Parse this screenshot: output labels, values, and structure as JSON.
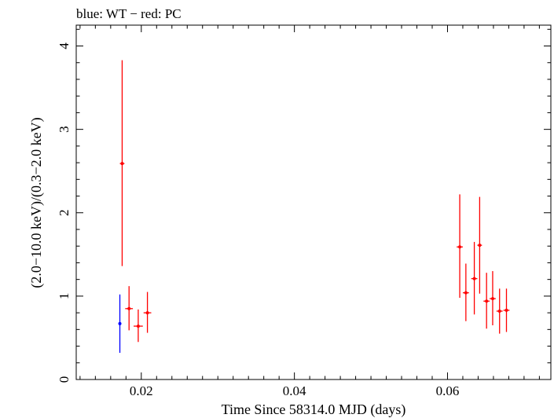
{
  "chart_data": {
    "type": "scatter",
    "title": "blue: WT − red: PC",
    "xlabel": "Time Since 58314.0 MJD (days)",
    "ylabel": "(2.0−10.0 keV)/(0.3−2.0 keV)",
    "xlim": [
      0.0115,
      0.0735
    ],
    "ylim": [
      0,
      4.25
    ],
    "xticks": [
      0.02,
      0.04,
      0.06
    ],
    "xtick_labels": [
      "0.02",
      "0.04",
      "0.06"
    ],
    "yticks": [
      0,
      1,
      2,
      3,
      4
    ],
    "ytick_labels": [
      "0",
      "1",
      "2",
      "3",
      "4"
    ],
    "grid": false,
    "series": [
      {
        "name": "WT",
        "color": "#0000ff",
        "points": [
          {
            "x": 0.0172,
            "xerr": 0.0001,
            "y": 0.67,
            "ylo": 0.32,
            "yhi": 1.02
          }
        ]
      },
      {
        "name": "PC",
        "color": "#ff0000",
        "points": [
          {
            "x": 0.0175,
            "xerr": 0.0003,
            "y": 2.59,
            "ylo": 1.36,
            "yhi": 3.83
          },
          {
            "x": 0.0184,
            "xerr": 0.0005,
            "y": 0.85,
            "ylo": 0.59,
            "yhi": 1.12
          },
          {
            "x": 0.0196,
            "xerr": 0.0006,
            "y": 0.64,
            "ylo": 0.45,
            "yhi": 0.84
          },
          {
            "x": 0.0208,
            "xerr": 0.0005,
            "y": 0.8,
            "ylo": 0.56,
            "yhi": 1.05
          },
          {
            "x": 0.0616,
            "xerr": 0.0004,
            "y": 1.59,
            "ylo": 0.98,
            "yhi": 2.22
          },
          {
            "x": 0.0624,
            "xerr": 0.0004,
            "y": 1.04,
            "ylo": 0.7,
            "yhi": 1.39
          },
          {
            "x": 0.0635,
            "xerr": 0.0004,
            "y": 1.21,
            "ylo": 0.78,
            "yhi": 1.65
          },
          {
            "x": 0.0642,
            "xerr": 0.0003,
            "y": 1.61,
            "ylo": 1.03,
            "yhi": 2.19
          },
          {
            "x": 0.0651,
            "xerr": 0.0004,
            "y": 0.94,
            "ylo": 0.61,
            "yhi": 1.28
          },
          {
            "x": 0.0659,
            "xerr": 0.0004,
            "y": 0.97,
            "ylo": 0.65,
            "yhi": 1.3
          },
          {
            "x": 0.0668,
            "xerr": 0.0004,
            "y": 0.82,
            "ylo": 0.55,
            "yhi": 1.09
          },
          {
            "x": 0.0677,
            "xerr": 0.0004,
            "y": 0.83,
            "ylo": 0.57,
            "yhi": 1.09
          }
        ]
      }
    ]
  }
}
